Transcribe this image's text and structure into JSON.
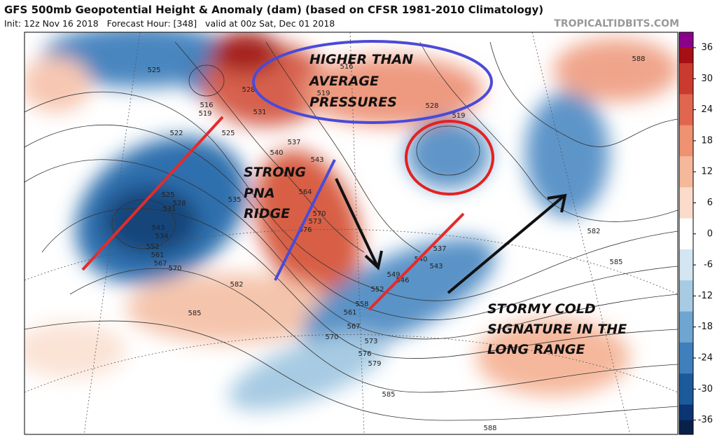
{
  "header": {
    "title": "GFS 500mb Geopotential Height & Anomaly (dam) (based on CFSR 1981-2010 Climatology)",
    "subtitle": "Init: 12z Nov 16 2018   Forecast Hour: [348]   valid at 00z Sat, Dec 01 2018",
    "watermark": "TROPICALTIDBITS.COM"
  },
  "annotations": {
    "pressures": [
      "HIGHER THAN",
      "AVERAGE",
      "PRESSURES"
    ],
    "ridge": [
      "STRONG",
      "PNA",
      "RIDGE"
    ],
    "stormy": [
      "STORMY COLD",
      "SIGNATURE IN THE",
      "LONG RANGE"
    ]
  },
  "colorbar": {
    "ticks": [
      36,
      30,
      24,
      18,
      12,
      6,
      0,
      -6,
      -12,
      -18,
      -24,
      -30,
      -36
    ]
  },
  "contour_labels": [
    "525",
    "516",
    "519",
    "522",
    "525",
    "528",
    "531",
    "516",
    "519",
    "528",
    "519",
    "537",
    "540",
    "543",
    "525",
    "528",
    "531",
    "534",
    "543",
    "552",
    "561",
    "567",
    "570",
    "582",
    "585",
    "564",
    "570",
    "573",
    "576",
    "535",
    "558",
    "561",
    "567",
    "570",
    "573",
    "576",
    "579",
    "585",
    "582",
    "585",
    "588",
    "537",
    "540",
    "543",
    "546",
    "549",
    "552",
    "588"
  ]
}
